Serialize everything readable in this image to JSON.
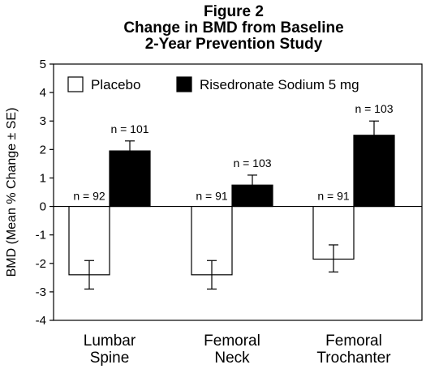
{
  "chart_data": {
    "type": "bar",
    "title_lines": [
      "Figure 2",
      "Change in BMD from Baseline",
      "2-Year Prevention Study"
    ],
    "ylabel": "BMD (Mean % Change ± SE)",
    "xlabel": "",
    "ylim": [
      -4,
      5
    ],
    "yticks": [
      5,
      4,
      3,
      2,
      1,
      0,
      -1,
      -2,
      -3,
      -4
    ],
    "categories": [
      {
        "id": "lumbar-spine",
        "label_lines": [
          "Lumbar",
          "Spine"
        ]
      },
      {
        "id": "femoral-neck",
        "label_lines": [
          "Femoral",
          "Neck"
        ]
      },
      {
        "id": "femoral-trochanter",
        "label_lines": [
          "Femoral",
          "Trochanter"
        ]
      }
    ],
    "series": [
      {
        "name": "Placebo",
        "color": "#ffffff",
        "values": [
          -2.4,
          -2.4,
          -1.85
        ],
        "error_low": [
          -2.9,
          -2.9,
          -2.3
        ],
        "error_high": [
          -1.9,
          -1.9,
          -1.35
        ],
        "n_labels": [
          "n = 92",
          "n = 91",
          "n = 91"
        ]
      },
      {
        "name": "Risedronate Sodium 5 mg",
        "color": "#000000",
        "values": [
          1.95,
          0.75,
          2.5
        ],
        "error_low": [
          1.6,
          0.4,
          2.0
        ],
        "error_high": [
          2.3,
          1.1,
          3.0
        ],
        "n_labels": [
          "n = 101",
          "n = 103",
          "n = 103"
        ]
      }
    ],
    "grid": false,
    "legend_position": "top-left"
  }
}
